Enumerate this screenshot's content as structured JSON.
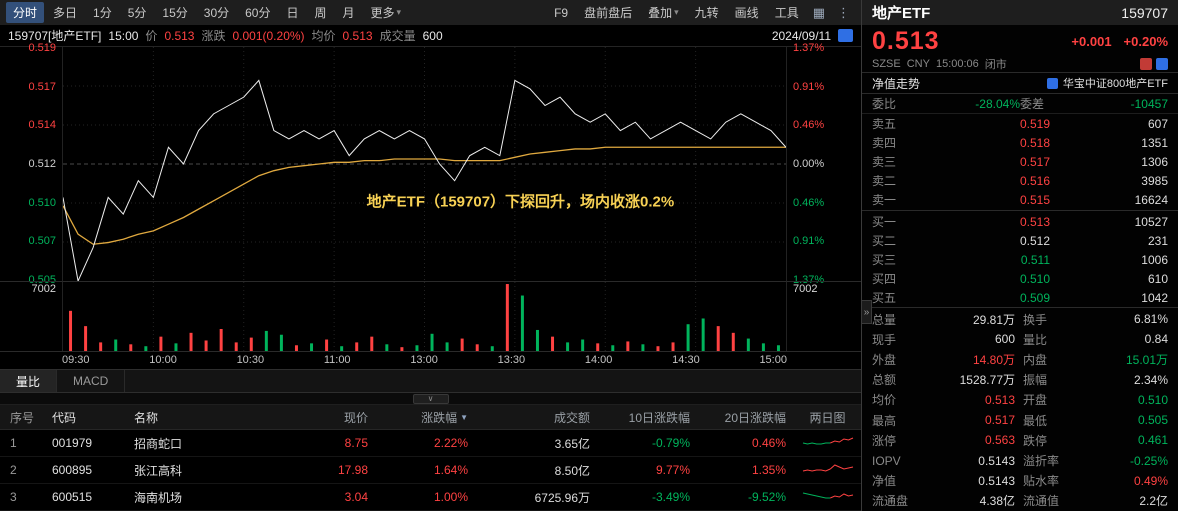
{
  "colors": {
    "red": "#ff4242",
    "green": "#00b45c",
    "white": "#dddddd",
    "gray": "#8a8a8a",
    "yellow": "#f7d154",
    "avg_line": "#e0a93f",
    "price_line": "#efefef",
    "accent_blue": "#2f6fe4"
  },
  "icons": {
    "chevron_down": "▾",
    "sort_desc": "▼",
    "grid_view": "▦",
    "more_vertical": "⋮",
    "collapse": "∨",
    "expand": "»"
  },
  "toolbar": {
    "tabs": [
      {
        "label": "分时"
      },
      {
        "label": "多日"
      },
      {
        "label": "1分"
      },
      {
        "label": "5分"
      },
      {
        "label": "15分"
      },
      {
        "label": "30分"
      },
      {
        "label": "60分"
      },
      {
        "label": "日"
      },
      {
        "label": "周"
      },
      {
        "label": "月"
      },
      {
        "label": "更多"
      }
    ],
    "right": {
      "f9": "F9",
      "pre_post": "盘前盘后",
      "overlay": "叠加",
      "nine_turn": "九转",
      "draw": "画线",
      "tools": "工具"
    }
  },
  "info_bar": {
    "symbol": "159707[地产ETF]",
    "time": "15:00",
    "price_label": "价",
    "price": "0.513",
    "change_label": "涨跌",
    "change": "0.001(0.20%)",
    "avg_label": "均价",
    "avg": "0.513",
    "vol_label": "成交量",
    "vol": "600",
    "date": "2024/09/11"
  },
  "chart": {
    "y_left": [
      {
        "t": "0.519",
        "c": "#ff4242"
      },
      {
        "t": "0.517",
        "c": "#ff4242"
      },
      {
        "t": "0.514",
        "c": "#ff4242"
      },
      {
        "t": "0.512",
        "c": "#cfcfcf"
      },
      {
        "t": "0.510",
        "c": "#00b45c"
      },
      {
        "t": "0.507",
        "c": "#00b45c"
      },
      {
        "t": "0.505",
        "c": "#00b45c"
      }
    ],
    "y_right": [
      {
        "t": "1.37%",
        "c": "#ff4242"
      },
      {
        "t": "0.91%",
        "c": "#ff4242"
      },
      {
        "t": "0.46%",
        "c": "#ff4242"
      },
      {
        "t": "0.00%",
        "c": "#cfcfcf"
      },
      {
        "t": "0.46%",
        "c": "#00b45c"
      },
      {
        "t": "0.91%",
        "c": "#00b45c"
      },
      {
        "t": "1.37%",
        "c": "#00b45c"
      }
    ],
    "vol_axis": "7002",
    "annotation": "地产ETF（159707）下探回升，场内收涨0.2%"
  },
  "chart_data": {
    "type": "line",
    "x_labels": [
      "09:30",
      "10:00",
      "10:30",
      "11:00",
      "13:00",
      "13:30",
      "14:00",
      "14:30",
      "15:00"
    ],
    "ylim": [
      0.505,
      0.519
    ],
    "prev_close": 0.512,
    "series": [
      {
        "name": "价格",
        "values": [
          0.51,
          0.505,
          0.507,
          0.51,
          0.509,
          0.511,
          0.51,
          0.513,
          0.512,
          0.514,
          0.515,
          0.5155,
          0.516,
          0.517,
          0.514,
          0.5135,
          0.514,
          0.5135,
          0.514,
          0.5125,
          0.5135,
          0.514,
          0.5135,
          0.514,
          0.5135,
          0.512,
          0.511,
          0.5125,
          0.513,
          0.5125,
          0.517,
          0.5165,
          0.5155,
          0.516,
          0.515,
          0.5145,
          0.515,
          0.514,
          0.5145,
          0.5135,
          0.514,
          0.5145,
          0.514,
          0.5135,
          0.5145,
          0.515,
          0.5145,
          0.514,
          0.513
        ]
      },
      {
        "name": "均价",
        "values": [
          0.5095,
          0.5078,
          0.5072,
          0.5073,
          0.5075,
          0.5078,
          0.508,
          0.5084,
          0.5088,
          0.5093,
          0.5098,
          0.5103,
          0.5108,
          0.5113,
          0.5116,
          0.5118,
          0.5119,
          0.512,
          0.5121,
          0.5121,
          0.5122,
          0.5122,
          0.5123,
          0.5123,
          0.5123,
          0.5123,
          0.5122,
          0.5122,
          0.5122,
          0.5122,
          0.5124,
          0.5126,
          0.5127,
          0.5128,
          0.5129,
          0.5129,
          0.513,
          0.513,
          0.513,
          0.513,
          0.513,
          0.513,
          0.513,
          0.513,
          0.513,
          0.513,
          0.513,
          0.513,
          0.513
        ]
      }
    ],
    "volume": {
      "max": 7002,
      "values": [
        4200,
        2600,
        900,
        1200,
        700,
        500,
        1500,
        800,
        1900,
        1100,
        2300,
        900,
        1400,
        2100,
        1700,
        600,
        800,
        1200,
        500,
        900,
        1500,
        700,
        400,
        600,
        1800,
        900,
        1300,
        700,
        500,
        7002,
        5800,
        2200,
        1500,
        900,
        1200,
        800,
        600,
        1000,
        700,
        500,
        900,
        2800,
        3400,
        2600,
        1900,
        1300,
        800,
        600
      ]
    }
  },
  "bottom_tabs": [
    "量比",
    "MACD"
  ],
  "table": {
    "headers": [
      "序号",
      "代码",
      "名称",
      "现价",
      "涨跌幅",
      "成交额",
      "10日涨跌幅",
      "20日涨跌幅",
      "两日图"
    ],
    "rows": [
      {
        "seq": "1",
        "code": "001979",
        "name": "招商蛇口",
        "price": "8.75",
        "price_c": "#ff4242",
        "chg": "2.22%",
        "chg_c": "#ff4242",
        "turnover": "3.65亿",
        "d10": "-0.79%",
        "d10_c": "#00b45c",
        "d20": "0.46%",
        "d20_c": "#ff4242",
        "spark": {
          "values": [
            9,
            8,
            9,
            8,
            8,
            9,
            9,
            11,
            10,
            13,
            12,
            14
          ],
          "split": 6,
          "c1": "#00b45c",
          "c2": "#ff4242"
        }
      },
      {
        "seq": "2",
        "code": "600895",
        "name": "张江高科",
        "price": "17.98",
        "price_c": "#ff4242",
        "chg": "1.64%",
        "chg_c": "#ff4242",
        "turnover": "8.50亿",
        "d10": "9.77%",
        "d10_c": "#ff4242",
        "d20": "1.35%",
        "d20_c": "#ff4242",
        "spark": {
          "values": [
            8,
            9,
            8,
            9,
            9,
            8,
            10,
            14,
            12,
            10,
            11,
            12
          ],
          "split": 6,
          "c1": "#ff4242",
          "c2": "#ff4242"
        }
      },
      {
        "seq": "3",
        "code": "600515",
        "name": "海南机场",
        "price": "3.04",
        "price_c": "#ff4242",
        "chg": "1.00%",
        "chg_c": "#ff4242",
        "turnover": "6725.96万",
        "d10": "-3.49%",
        "d10_c": "#00b45c",
        "d20": "-9.52%",
        "d20_c": "#00b45c",
        "spark": {
          "values": [
            13,
            12,
            11,
            10,
            9,
            8,
            8,
            10,
            9,
            12,
            10,
            11
          ],
          "split": 6,
          "c1": "#00b45c",
          "c2": "#ff4242"
        }
      }
    ]
  },
  "panel": {
    "title": "地产ETF",
    "code": "159707",
    "price": "0.513",
    "change": "+0.001",
    "change_pct": "+0.20%",
    "exchange": "SZSE",
    "currency": "CNY",
    "time": "15:00:06",
    "status": "闭市",
    "nav_label": "净值走势",
    "fund_name": "华宝中证800地产ETF",
    "weibi": {
      "k": "委比",
      "v": "-28.04%",
      "vc": "#00b45c",
      "k2": "委差",
      "v2": "-10457",
      "v2c": "#00b45c"
    },
    "asks": [
      {
        "label": "卖五",
        "price": "0.519",
        "pc": "#ff4242",
        "vol": "607"
      },
      {
        "label": "卖四",
        "price": "0.518",
        "pc": "#ff4242",
        "vol": "1351"
      },
      {
        "label": "卖三",
        "price": "0.517",
        "pc": "#ff4242",
        "vol": "1306"
      },
      {
        "label": "卖二",
        "price": "0.516",
        "pc": "#ff4242",
        "vol": "3985"
      },
      {
        "label": "卖一",
        "price": "0.515",
        "pc": "#ff4242",
        "vol": "16624"
      }
    ],
    "bids": [
      {
        "label": "买一",
        "price": "0.513",
        "pc": "#ff4242",
        "vol": "10527"
      },
      {
        "label": "买二",
        "price": "0.512",
        "pc": "#dddddd",
        "vol": "231"
      },
      {
        "label": "买三",
        "price": "0.511",
        "pc": "#00b45c",
        "vol": "1006"
      },
      {
        "label": "买四",
        "price": "0.510",
        "pc": "#00b45c",
        "vol": "610"
      },
      {
        "label": "买五",
        "price": "0.509",
        "pc": "#00b45c",
        "vol": "1042"
      }
    ],
    "stats": [
      {
        "k": "总量",
        "v": "29.81万",
        "vc": "#dddddd",
        "k2": "换手",
        "v2": "6.81%",
        "v2c": "#dddddd"
      },
      {
        "k": "现手",
        "v": "600",
        "vc": "#dddddd",
        "k2": "量比",
        "v2": "0.84",
        "v2c": "#dddddd"
      },
      {
        "k": "外盘",
        "v": "14.80万",
        "vc": "#ff4242",
        "k2": "内盘",
        "v2": "15.01万",
        "v2c": "#00b45c"
      },
      {
        "k": "总额",
        "v": "1528.77万",
        "vc": "#dddddd",
        "k2": "振幅",
        "v2": "2.34%",
        "v2c": "#dddddd"
      },
      {
        "k": "均价",
        "v": "0.513",
        "vc": "#ff4242",
        "k2": "开盘",
        "v2": "0.510",
        "v2c": "#00b45c"
      },
      {
        "k": "最高",
        "v": "0.517",
        "vc": "#ff4242",
        "k2": "最低",
        "v2": "0.505",
        "v2c": "#00b45c"
      },
      {
        "k": "涨停",
        "v": "0.563",
        "vc": "#ff4242",
        "k2": "跌停",
        "v2": "0.461",
        "v2c": "#00b45c"
      },
      {
        "k": "IOPV",
        "v": "0.5143",
        "vc": "#dddddd",
        "k2": "溢折率",
        "v2": "-0.25%",
        "v2c": "#00b45c"
      },
      {
        "k": "净值",
        "v": "0.5143",
        "vc": "#dddddd",
        "k2": "贴水率",
        "v2": "0.49%",
        "v2c": "#ff4242"
      },
      {
        "k": "流通盘",
        "v": "4.38亿",
        "vc": "#dddddd",
        "k2": "流通值",
        "v2": "2.2亿",
        "v2c": "#dddddd"
      }
    ]
  }
}
